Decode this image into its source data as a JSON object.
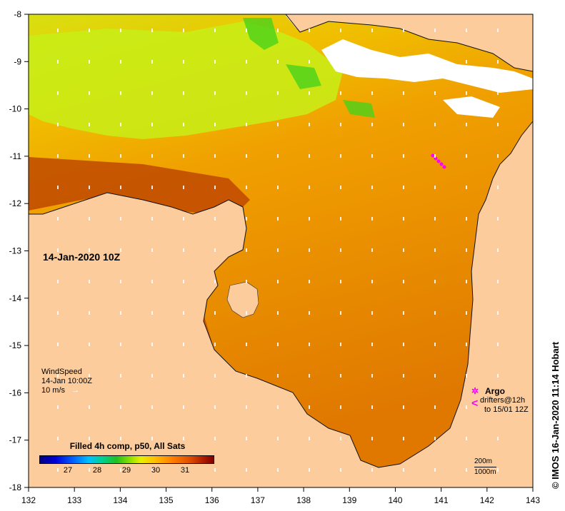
{
  "map": {
    "date_label": "14-Jan-2020 10Z",
    "x_ticks": [
      "132",
      "133",
      "134",
      "135",
      "136",
      "137",
      "138",
      "139",
      "140",
      "141",
      "142",
      "143"
    ],
    "y_ticks": [
      "-8",
      "-9",
      "-10",
      "-11",
      "-12",
      "-13",
      "-14",
      "-15",
      "-16",
      "-17",
      "-18"
    ],
    "colors": {
      "land": "#fccc9c",
      "nodata": "#ffffff",
      "warm": "#e68a00",
      "cool": "#b8f020"
    }
  },
  "wind": {
    "title": "WindSpeed",
    "time": "14-Jan 10:00Z",
    "scale_label": "10 m/s",
    "arrow_icon": "arrow-right-icon"
  },
  "argo": {
    "label": "Argo",
    "line1": "drifters@12h",
    "line2": "to 15/01 12Z",
    "marker_color": "#ff00ff"
  },
  "colorbar": {
    "title": "Filled 4h comp, p50, All Sats",
    "ticks": [
      "27",
      "28",
      "29",
      "30",
      "31"
    ]
  },
  "depth": {
    "contour1": "200m",
    "contour2": "1000m"
  },
  "credit": "© IMOS 16-Jan-2020 11:14 Hobart"
}
